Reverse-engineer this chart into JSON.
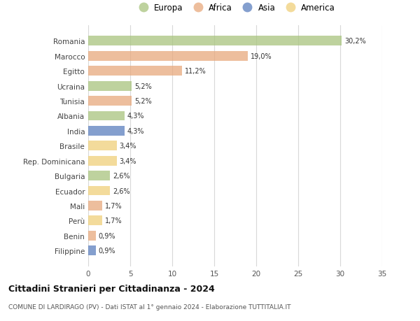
{
  "countries": [
    "Romania",
    "Marocco",
    "Egitto",
    "Ucraina",
    "Tunisia",
    "Albania",
    "India",
    "Brasile",
    "Rep. Dominicana",
    "Bulgaria",
    "Ecuador",
    "Mali",
    "Perù",
    "Benin",
    "Filippine"
  ],
  "values": [
    30.2,
    19.0,
    11.2,
    5.2,
    5.2,
    4.3,
    4.3,
    3.4,
    3.4,
    2.6,
    2.6,
    1.7,
    1.7,
    0.9,
    0.9
  ],
  "labels": [
    "30,2%",
    "19,0%",
    "11,2%",
    "5,2%",
    "5,2%",
    "4,3%",
    "4,3%",
    "3,4%",
    "3,4%",
    "2,6%",
    "2,6%",
    "1,7%",
    "1,7%",
    "0,9%",
    "0,9%"
  ],
  "continents": [
    "Europa",
    "Africa",
    "Africa",
    "Europa",
    "Africa",
    "Europa",
    "Asia",
    "America",
    "America",
    "Europa",
    "America",
    "Africa",
    "America",
    "Africa",
    "Asia"
  ],
  "colors": {
    "Europa": "#a8c47e",
    "Africa": "#e8a87c",
    "Asia": "#5b7fbe",
    "America": "#f0d07a"
  },
  "legend_order": [
    "Europa",
    "Africa",
    "Asia",
    "America"
  ],
  "title": "Cittadini Stranieri per Cittadinanza - 2024",
  "subtitle": "COMUNE DI LARDIRAGO (PV) - Dati ISTAT al 1° gennaio 2024 - Elaborazione TUTTITALIA.IT",
  "xlim": [
    0,
    35
  ],
  "xticks": [
    0,
    5,
    10,
    15,
    20,
    25,
    30,
    35
  ],
  "background_color": "#ffffff",
  "grid_color": "#d8d8d8",
  "bar_alpha": 0.75
}
